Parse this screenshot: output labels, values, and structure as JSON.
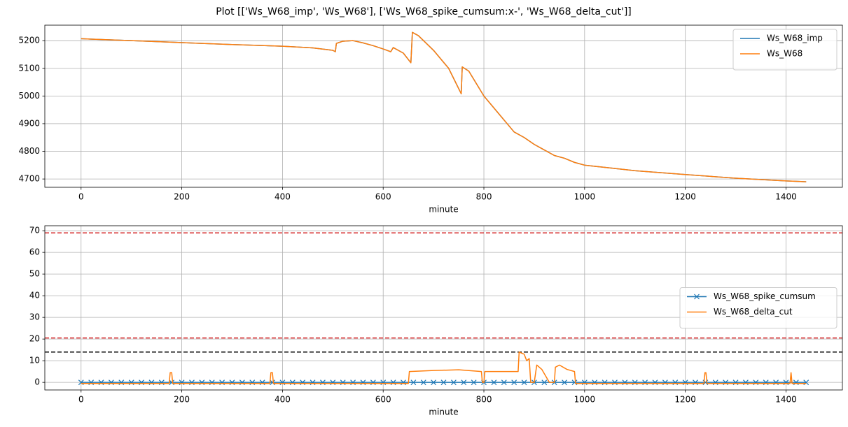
{
  "title": "Plot [['Ws_W68_imp', 'Ws_W68'], ['Ws_W68_spike_cumsum:x-', 'Ws_W68_delta_cut']]",
  "chart_data": [
    {
      "type": "line",
      "xlabel": "minute",
      "grid": true,
      "legend": "upper right",
      "xlim": [
        -72,
        1512
      ],
      "xticks": [
        0,
        200,
        400,
        600,
        800,
        1000,
        1200,
        1400
      ],
      "ylim": [
        4670,
        5256
      ],
      "yticks": [
        4700,
        4800,
        4900,
        5000,
        5100,
        5200
      ],
      "x": [
        0,
        100,
        200,
        300,
        400,
        460,
        500,
        505,
        507,
        520,
        540,
        560,
        580,
        600,
        615,
        620,
        640,
        655,
        658,
        670,
        700,
        730,
        755,
        757,
        770,
        800,
        830,
        860,
        880,
        900,
        920,
        940,
        960,
        980,
        1000,
        1050,
        1100,
        1200,
        1300,
        1400,
        1440
      ],
      "series": [
        {
          "name": "Ws_W68_imp",
          "color": "#1f77b4",
          "values": [
            5207,
            5200,
            5193,
            5186,
            5180,
            5174,
            5165,
            5160,
            5190,
            5198,
            5200,
            5192,
            5182,
            5170,
            5160,
            5175,
            5155,
            5120,
            5230,
            5218,
            5165,
            5100,
            5008,
            5105,
            5090,
            5000,
            4935,
            4870,
            4850,
            4825,
            4805,
            4785,
            4775,
            4760,
            4750,
            4740,
            4730,
            4716,
            4703,
            4693,
            4690
          ]
        },
        {
          "name": "Ws_W68",
          "color": "#ff7f0e",
          "values": [
            5207,
            5200,
            5193,
            5186,
            5180,
            5174,
            5165,
            5160,
            5190,
            5198,
            5200,
            5192,
            5182,
            5170,
            5160,
            5175,
            5155,
            5120,
            5230,
            5218,
            5165,
            5100,
            5008,
            5105,
            5090,
            5000,
            4935,
            4870,
            4850,
            4825,
            4805,
            4785,
            4775,
            4760,
            4750,
            4740,
            4730,
            4716,
            4703,
            4693,
            4690
          ]
        }
      ]
    },
    {
      "type": "line",
      "xlabel": "minute",
      "grid": true,
      "legend": "center right",
      "xlim": [
        -72,
        1512
      ],
      "xticks": [
        0,
        200,
        400,
        600,
        800,
        1000,
        1200,
        1400
      ],
      "ylim": [
        -3.5,
        72.3
      ],
      "yticks": [
        0,
        10,
        20,
        30,
        40,
        50,
        60,
        70
      ],
      "hlines": [
        {
          "value": 69,
          "color": "#d62728",
          "style": "dashed"
        },
        {
          "value": 20.5,
          "color": "#d62728",
          "style": "dashed"
        },
        {
          "value": 14,
          "color": "#000000",
          "style": "dashed"
        }
      ],
      "series": [
        {
          "name": "Ws_W68_spike_cumsum",
          "color": "#1f77b4",
          "marker": "x",
          "x": [
            0,
            20,
            40,
            60,
            80,
            100,
            120,
            140,
            160,
            180,
            200,
            220,
            240,
            260,
            280,
            300,
            320,
            340,
            360,
            380,
            400,
            420,
            440,
            460,
            480,
            500,
            520,
            540,
            560,
            580,
            600,
            620,
            640,
            660,
            680,
            700,
            720,
            740,
            760,
            780,
            800,
            820,
            840,
            860,
            880,
            900,
            920,
            940,
            960,
            980,
            1000,
            1020,
            1040,
            1060,
            1080,
            1100,
            1120,
            1140,
            1160,
            1180,
            1200,
            1220,
            1240,
            1260,
            1280,
            1300,
            1320,
            1340,
            1360,
            1380,
            1400,
            1420,
            1440
          ],
          "values": [
            0,
            0,
            0,
            0,
            0,
            0,
            0,
            0,
            0,
            0,
            0,
            0,
            0,
            0,
            0,
            0,
            0,
            0,
            0,
            0,
            0,
            0,
            0,
            0,
            0,
            0,
            0,
            0,
            0,
            0,
            0,
            0,
            0,
            0,
            0,
            0,
            0,
            0,
            0,
            0,
            0,
            0,
            0,
            0,
            0,
            0,
            0,
            0,
            0,
            0,
            0,
            0,
            0,
            0,
            0,
            0,
            0,
            0,
            0,
            0,
            0,
            0,
            0,
            0,
            0,
            0,
            0,
            0,
            0,
            0,
            0,
            0,
            0
          ]
        },
        {
          "name": "Ws_W68_delta_cut",
          "color": "#ff7f0e",
          "x": [
            0,
            175,
            177,
            180,
            182,
            375,
            377,
            380,
            382,
            650,
            652,
            700,
            750,
            795,
            797,
            800,
            802,
            850,
            868,
            870,
            880,
            885,
            890,
            893,
            900,
            905,
            915,
            930,
            940,
            942,
            950,
            965,
            980,
            982,
            1237,
            1239,
            1241,
            1243,
            1408,
            1410,
            1412,
            1440
          ],
          "values": [
            -0.5,
            -0.5,
            4.5,
            4.5,
            -0.5,
            -0.5,
            4.5,
            4.5,
            -0.5,
            -0.5,
            5,
            5.5,
            5.8,
            5,
            0,
            0,
            5,
            5,
            5,
            14,
            13,
            10,
            11,
            0,
            0,
            8,
            6,
            0,
            0,
            7,
            8,
            6,
            5,
            -0.5,
            -0.5,
            4.5,
            4.5,
            -0.5,
            -0.5,
            4.5,
            -0.5,
            -0.5
          ]
        }
      ]
    }
  ]
}
